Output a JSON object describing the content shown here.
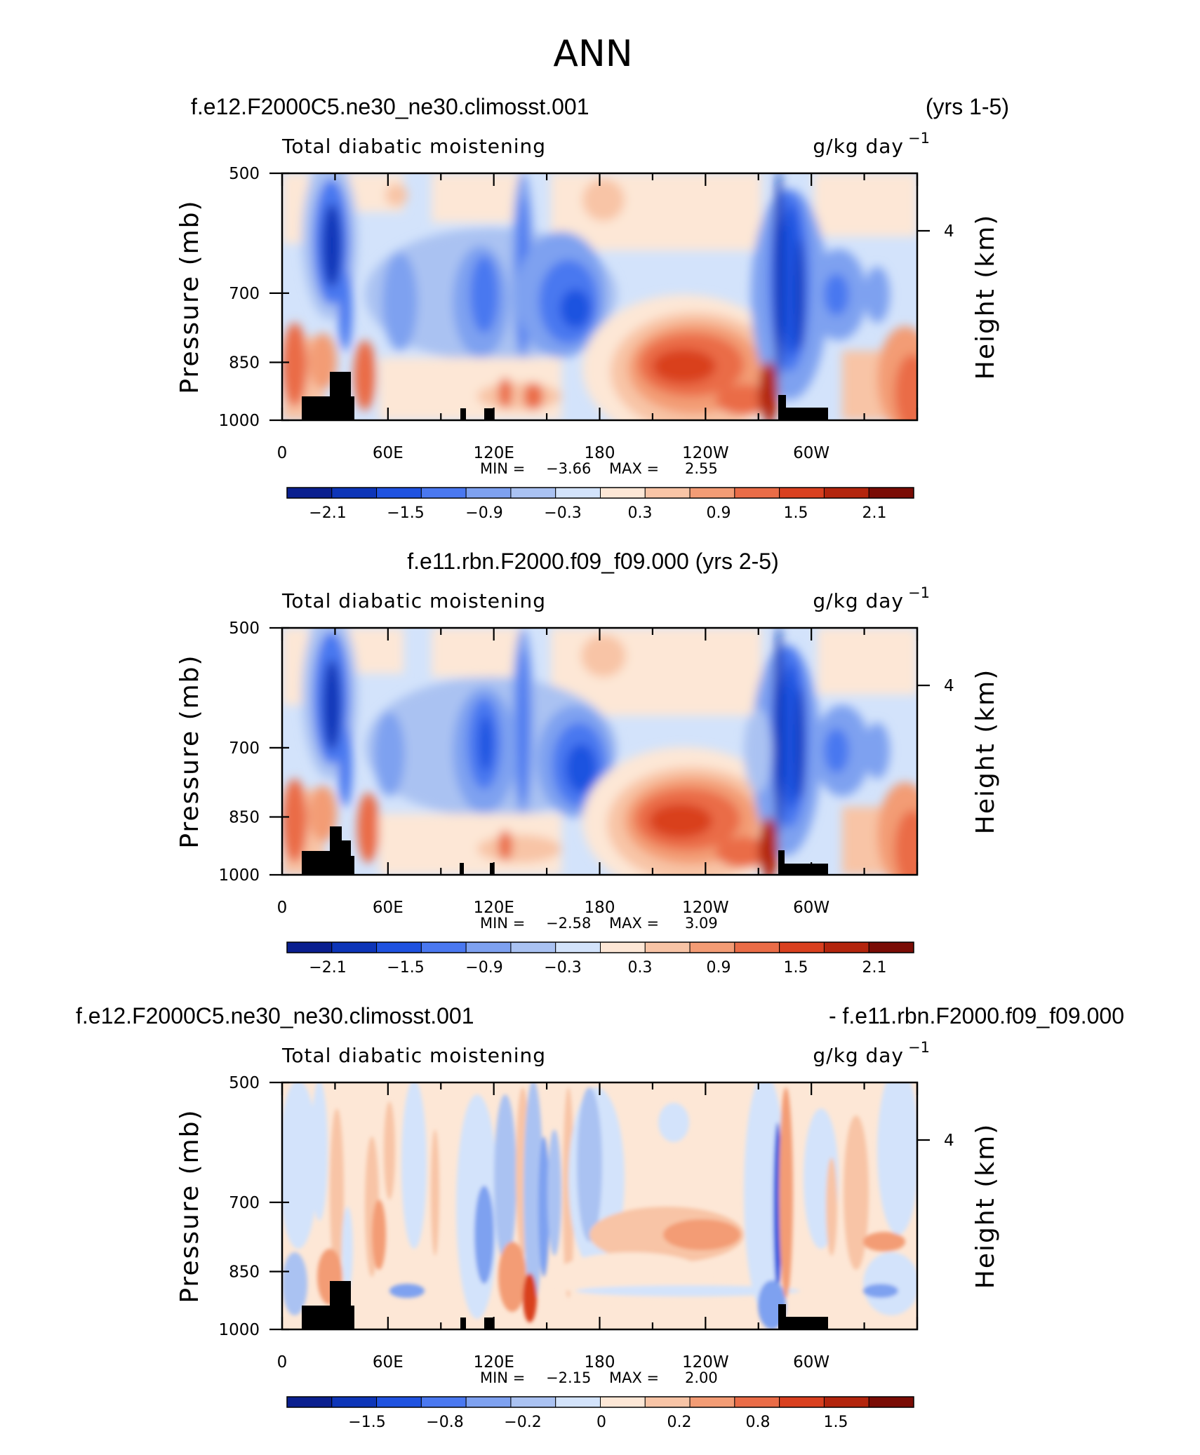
{
  "figure_title": "ANN",
  "colors": {
    "palette": [
      "#0a1f8f",
      "#0d35b8",
      "#1f52e0",
      "#4a78f0",
      "#7ea1f0",
      "#aac2f2",
      "#d3e3fb",
      "#fde7d6",
      "#f8c4a6",
      "#f39c75",
      "#ea6c47",
      "#d9401f",
      "#b3250d",
      "#7a0c05"
    ]
  },
  "panels": [
    {
      "case_left": "f.e12.F2000C5.ne30_ne30.climosst.001",
      "case_right": "(yrs 1-5)",
      "var_name": "Total diabatic moistening",
      "units_main": "g/kg day",
      "units_sup": "−1",
      "min_label": "MIN =",
      "min_value": "−3.66",
      "max_label": "MAX =",
      "max_value": "2.55",
      "colorbar_labels": [
        "−2.1",
        "−1.5",
        "−0.9",
        "−0.3",
        "0.3",
        "0.9",
        "1.5",
        "2.1"
      ]
    },
    {
      "case_center": "f.e11.rbn.F2000.f09_f09.000 (yrs 2-5)",
      "var_name": "Total diabatic moistening",
      "units_main": "g/kg day",
      "units_sup": "−1",
      "min_label": "MIN =",
      "min_value": "−2.58",
      "max_label": "MAX =",
      "max_value": "3.09",
      "colorbar_labels": [
        "−2.1",
        "−1.5",
        "−0.9",
        "−0.3",
        "0.3",
        "0.9",
        "1.5",
        "2.1"
      ]
    },
    {
      "case_left": "f.e12.F2000C5.ne30_ne30.climosst.001",
      "case_right": "- f.e11.rbn.F2000.f09_f09.000",
      "var_name": "Total diabatic moistening",
      "units_main": "g/kg day",
      "units_sup": "−1",
      "min_label": "MIN =",
      "min_value": "−2.15",
      "max_label": "MAX =",
      "max_value": "2.00",
      "colorbar_labels": [
        "−1.5",
        "−0.8",
        "−0.2",
        "0",
        "0.2",
        "0.8",
        "1.5"
      ]
    }
  ],
  "axes": {
    "ylabel": "Pressure (mb)",
    "ylabel_right": "Height (km)",
    "yticks": [
      "500",
      "700",
      "850",
      "1000"
    ],
    "yticks_right": [
      "4"
    ],
    "xticks": [
      "0",
      "60E",
      "120E",
      "180",
      "120W",
      "60W"
    ]
  },
  "chart_data": [
    {
      "type": "heatmap",
      "title": "Total diabatic moistening",
      "case": "f.e12.F2000C5.ne30_ne30.climosst.001 (yrs 1-5)",
      "units": "g/kg day-1",
      "x": "longitude (0 to 360)",
      "xticks": [
        "0",
        "60E",
        "120E",
        "180",
        "120W",
        "60W"
      ],
      "y": "pressure (mb)",
      "ylim": [
        1000,
        500
      ],
      "yticks": [
        500,
        700,
        850,
        1000
      ],
      "min": -3.66,
      "max": 2.55,
      "contour_levels": [
        -2.4,
        -2.1,
        -1.8,
        -1.5,
        -1.2,
        -0.9,
        -0.6,
        -0.3,
        0,
        0.3,
        0.6,
        0.9,
        1.2,
        1.5,
        1.8,
        2.1,
        2.4
      ],
      "features": [
        {
          "lon": 28,
          "p_top": 540,
          "p_bottom": 760,
          "value": -2.2
        },
        {
          "lon": 40,
          "p_top": 700,
          "p_bottom": 950,
          "value": 1.1
        },
        {
          "lon": 108,
          "p_top": 600,
          "p_bottom": 860,
          "value": -1.2
        },
        {
          "lon": 135,
          "p_top": 520,
          "p_bottom": 900,
          "value": -1.7
        },
        {
          "lon": 160,
          "p_top": 620,
          "p_bottom": 820,
          "value": -1.6
        },
        {
          "lon": 215,
          "p_top": 760,
          "p_bottom": 990,
          "value": 1.9
        },
        {
          "lon": 282,
          "p_top": 520,
          "p_bottom": 900,
          "value": -2.6
        },
        {
          "lon": 355,
          "p_top": 800,
          "p_bottom": 1000,
          "value": 1.1
        }
      ]
    },
    {
      "type": "heatmap",
      "title": "Total diabatic moistening",
      "case": "f.e11.rbn.F2000.f09_f09.000 (yrs 2-5)",
      "units": "g/kg day-1",
      "x": "longitude (0 to 360)",
      "xticks": [
        "0",
        "60E",
        "120E",
        "180",
        "120W",
        "60W"
      ],
      "y": "pressure (mb)",
      "ylim": [
        1000,
        500
      ],
      "yticks": [
        500,
        700,
        850,
        1000
      ],
      "min": -2.58,
      "max": 3.09,
      "contour_levels": [
        -2.4,
        -2.1,
        -1.8,
        -1.5,
        -1.2,
        -0.9,
        -0.6,
        -0.3,
        0,
        0.3,
        0.6,
        0.9,
        1.2,
        1.5,
        1.8,
        2.1,
        2.4
      ],
      "features": [
        {
          "lon": 28,
          "p_top": 540,
          "p_bottom": 780,
          "value": -2.0
        },
        {
          "lon": 40,
          "p_top": 720,
          "p_bottom": 950,
          "value": 1.2
        },
        {
          "lon": 115,
          "p_top": 600,
          "p_bottom": 880,
          "value": -1.4
        },
        {
          "lon": 135,
          "p_top": 530,
          "p_bottom": 900,
          "value": -1.5
        },
        {
          "lon": 165,
          "p_top": 660,
          "p_bottom": 860,
          "value": -1.7
        },
        {
          "lon": 218,
          "p_top": 780,
          "p_bottom": 990,
          "value": 2.0
        },
        {
          "lon": 285,
          "p_top": 520,
          "p_bottom": 900,
          "value": -2.3
        },
        {
          "lon": 355,
          "p_top": 800,
          "p_bottom": 1000,
          "value": 1.2
        }
      ]
    },
    {
      "type": "heatmap",
      "title": "Total diabatic moistening",
      "case": "f.e12.F2000C5.ne30_ne30.climosst.001 - f.e11.rbn.F2000.f09_f09.000",
      "units": "g/kg day-1",
      "x": "longitude (0 to 360)",
      "xticks": [
        "0",
        "60E",
        "120E",
        "180",
        "120W",
        "60W"
      ],
      "y": "pressure (mb)",
      "ylim": [
        1000,
        500
      ],
      "yticks": [
        500,
        700,
        850,
        1000
      ],
      "min": -2.15,
      "max": 2.0,
      "contour_levels": [
        -2.0,
        -1.5,
        -1.0,
        -0.8,
        -0.5,
        -0.2,
        -0.1,
        0,
        0.1,
        0.2,
        0.5,
        0.8,
        1.0,
        1.5,
        2.0
      ],
      "features": [
        {
          "lon": 30,
          "p_top": 650,
          "p_bottom": 950,
          "value": 0.5
        },
        {
          "lon": 52,
          "p_top": 700,
          "p_bottom": 900,
          "value": 0.5
        },
        {
          "lon": 140,
          "p_top": 560,
          "p_bottom": 920,
          "value": -0.6
        },
        {
          "lon": 215,
          "p_top": 760,
          "p_bottom": 880,
          "value": 0.4
        },
        {
          "lon": 280,
          "p_top": 700,
          "p_bottom": 980,
          "value": -1.2
        }
      ]
    }
  ]
}
